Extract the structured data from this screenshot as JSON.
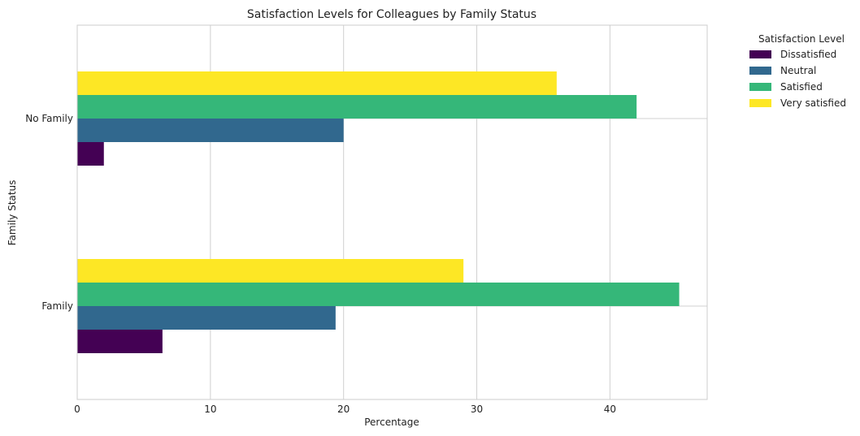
{
  "chart_data": {
    "type": "bar",
    "orientation": "horizontal",
    "title": "Satisfaction Levels for Colleagues by Family Status",
    "xlabel": "Percentage",
    "ylabel": "Family Status",
    "categories": [
      "Family",
      "No Family"
    ],
    "xlim": [
      0,
      47.3
    ],
    "xticks": [
      0,
      10,
      20,
      30,
      40
    ],
    "grid": true,
    "legend": {
      "title": "Satisfaction Level",
      "placement": "outside-top-right"
    },
    "series": [
      {
        "name": "Dissatisfied",
        "color": "#440154",
        "values": [
          6.4,
          2.0
        ]
      },
      {
        "name": "Neutral",
        "color": "#31688e",
        "values": [
          19.4,
          20.0
        ]
      },
      {
        "name": "Satisfied",
        "color": "#35b779",
        "values": [
          45.2,
          42.0
        ]
      },
      {
        "name": "Very satisfied",
        "color": "#fde725",
        "values": [
          29.0,
          36.0
        ]
      }
    ]
  }
}
